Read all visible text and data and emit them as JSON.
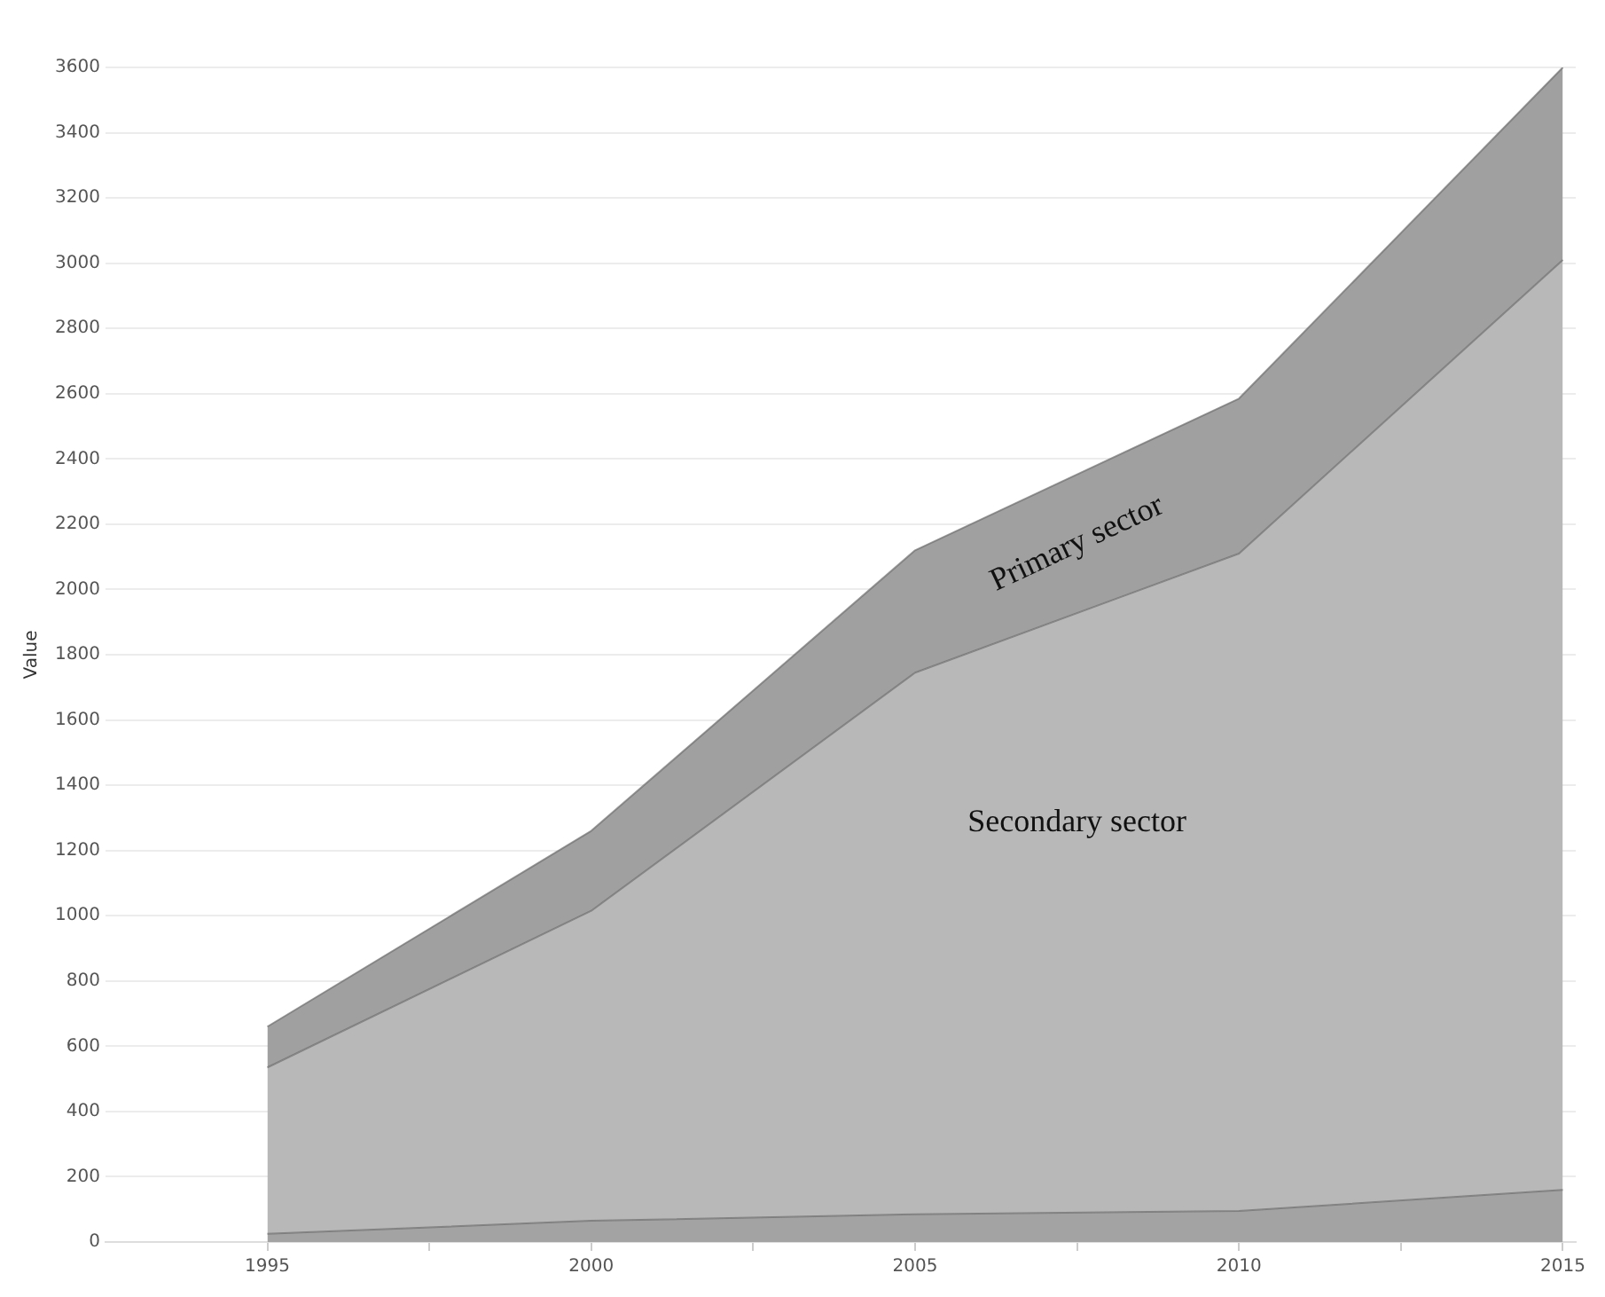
{
  "chart_data": {
    "type": "area",
    "stacked": true,
    "ylabel": "Value",
    "x": [
      1995,
      2000,
      2005,
      2010,
      2015
    ],
    "series": [
      {
        "color": "#a3a3a3",
        "values": [
          25,
          65,
          85,
          95,
          160
        ]
      },
      {
        "name": "Secondary sector",
        "color": "#b8b8b8",
        "values": [
          510,
          950,
          1660,
          2015,
          2850
        ]
      },
      {
        "name": "Primary sector",
        "color": "#a0a0a0",
        "values": [
          125,
          245,
          375,
          475,
          590
        ]
      }
    ],
    "xlim": [
      1992.5,
      2015.2
    ],
    "xticks": [
      1995,
      {
        "value": 1997.5,
        "label": null
      },
      2000,
      {
        "value": 2002.5,
        "label": null
      },
      2005,
      {
        "value": 2007.5,
        "label": null
      },
      2010,
      {
        "value": 2012.5,
        "label": null
      },
      2015
    ],
    "ylim": [
      0,
      3600
    ],
    "yticks": [
      0,
      200,
      400,
      600,
      800,
      1000,
      1200,
      1400,
      1600,
      1800,
      2000,
      2200,
      2400,
      2600,
      2800,
      3000,
      3200,
      3400,
      3600
    ],
    "grid": "y",
    "legend": false
  }
}
